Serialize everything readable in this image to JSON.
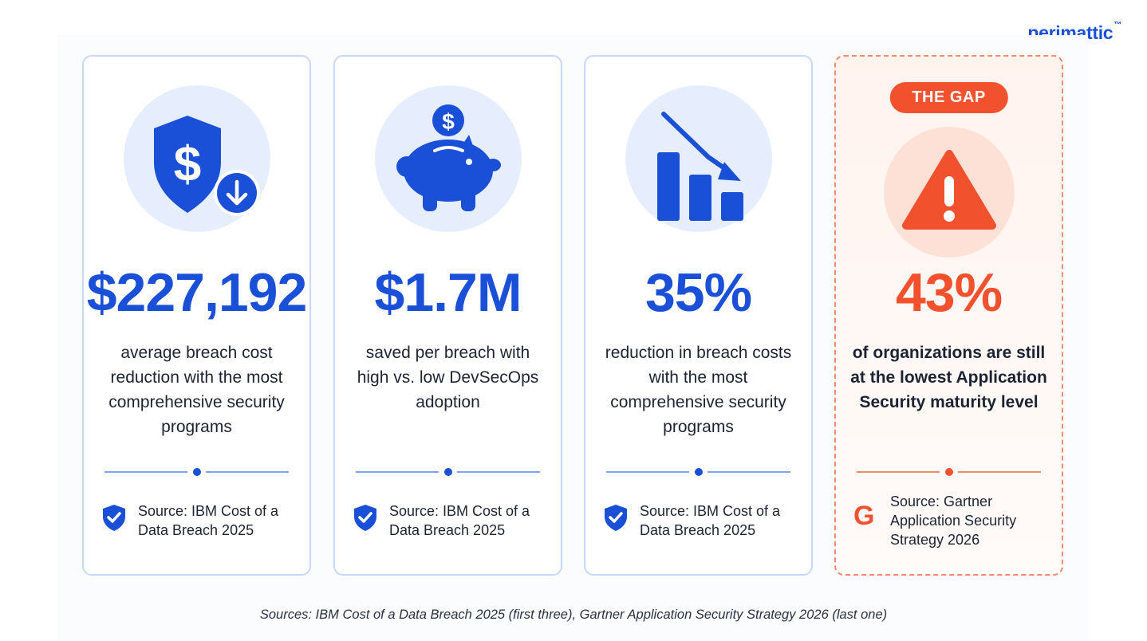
{
  "brand": {
    "name": "perimattic",
    "trademark": "™"
  },
  "colors": {
    "primary_blue": "#1a4fd8",
    "accent_red": "#f2512e",
    "light_blue": "#e6eefe",
    "light_red": "#fde0d6"
  },
  "cards": [
    {
      "icon": "shield-dollar-download-icon",
      "value": "$227,192",
      "description": "average breach cost reduction with the most comprehensive security programs",
      "source_icon": "shield-check-icon",
      "source": "Source: IBM Cost of a Data Breach 2025"
    },
    {
      "icon": "piggy-bank-icon",
      "value": "$1.7M",
      "description": "saved per breach with high vs. low DevSecOps adoption",
      "source_icon": "shield-check-icon",
      "source": "Source: IBM Cost of a Data Breach 2025"
    },
    {
      "icon": "declining-bar-chart-icon",
      "value": "35%",
      "description": "reduction in breach costs with the most comprehensive security programs",
      "source_icon": "shield-check-icon",
      "source": "Source: IBM Cost of a Data Breach 2025"
    },
    {
      "badge": "THE GAP",
      "icon": "warning-triangle-icon",
      "value": "43%",
      "description": "of organizations are still at the lowest Application Security maturity level",
      "source_icon": "gartner-g-icon",
      "source_glyph": "G",
      "source": "Source: Gartner Application Security Strategy 2026"
    }
  ],
  "footnote": "Sources: IBM Cost of a Data Breach 2025 (first three), Gartner Application Security Strategy 2026 (last one)"
}
